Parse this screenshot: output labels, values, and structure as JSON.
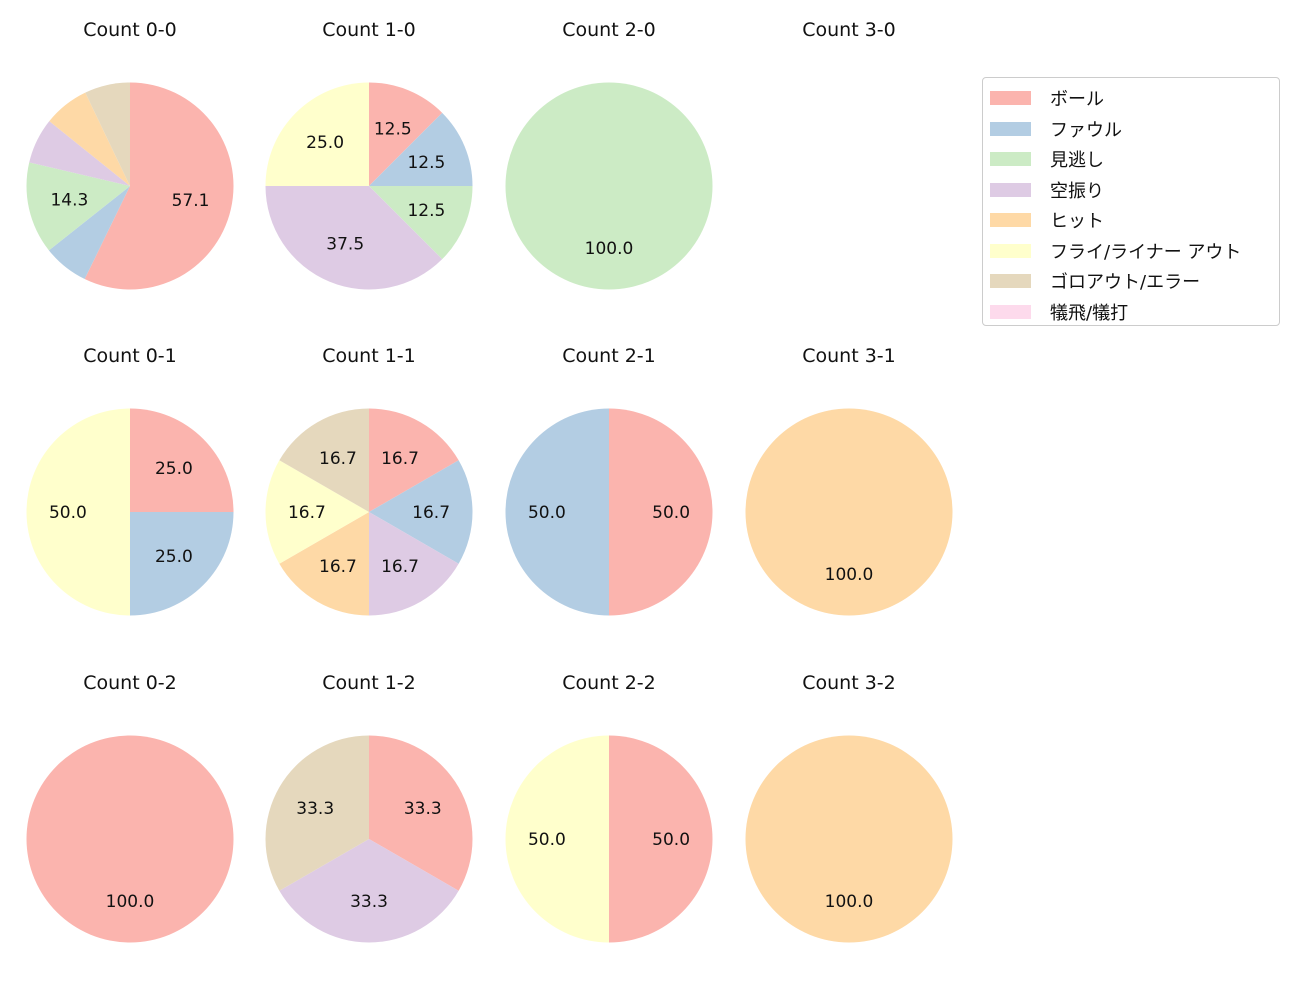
{
  "chart_data": {
    "type": "pie",
    "categories": [
      "ボール",
      "ファウル",
      "見逃し",
      "空振り",
      "ヒット",
      "フライ/ライナー アウト",
      "ゴロアウト/エラー",
      "犠飛/犠打"
    ],
    "colors": [
      "#fbb4ae",
      "#b3cde3",
      "#ccebc5",
      "#decbe4",
      "#fed9a6",
      "#ffffcc",
      "#e5d8bd",
      "#fddaec"
    ],
    "legend_position": "right",
    "charts": [
      {
        "title": "Count 0-0",
        "values": [
          57.1,
          7.1,
          14.3,
          7.1,
          7.1,
          0,
          7.1,
          0
        ],
        "labels": [
          "57.1",
          "",
          "14.3",
          "",
          "",
          "",
          "",
          ""
        ]
      },
      {
        "title": "Count 1-0",
        "values": [
          12.5,
          12.5,
          12.5,
          37.5,
          0,
          25.0,
          0,
          0
        ],
        "labels": [
          "12.5",
          "12.5",
          "12.5",
          "37.5",
          "",
          "25.0",
          "",
          ""
        ]
      },
      {
        "title": "Count 2-0",
        "values": [
          0,
          0,
          100,
          0,
          0,
          0,
          0,
          0
        ],
        "labels": [
          "",
          "",
          "100.0",
          "",
          "",
          "",
          "",
          ""
        ]
      },
      {
        "title": "Count 3-0",
        "values": [
          0,
          0,
          0,
          0,
          0,
          0,
          0,
          0
        ],
        "labels": [
          "",
          "",
          "",
          "",
          "",
          "",
          "",
          ""
        ]
      },
      {
        "title": "Count 0-1",
        "values": [
          25.0,
          25.0,
          0,
          0,
          0,
          50.0,
          0,
          0
        ],
        "labels": [
          "25.0",
          "25.0",
          "",
          "",
          "",
          "50.0",
          "",
          ""
        ]
      },
      {
        "title": "Count 1-1",
        "values": [
          16.7,
          16.7,
          0,
          16.7,
          16.7,
          16.7,
          16.7,
          0
        ],
        "labels": [
          "16.7",
          "16.7",
          "",
          "16.7",
          "16.7",
          "16.7",
          "16.7",
          ""
        ]
      },
      {
        "title": "Count 2-1",
        "values": [
          50.0,
          50.0,
          0,
          0,
          0,
          0,
          0,
          0
        ],
        "labels": [
          "50.0",
          "50.0",
          "",
          "",
          "",
          "",
          "",
          ""
        ]
      },
      {
        "title": "Count 3-1",
        "values": [
          0,
          0,
          0,
          0,
          100,
          0,
          0,
          0
        ],
        "labels": [
          "",
          "",
          "",
          "",
          "100.0",
          "",
          "",
          ""
        ]
      },
      {
        "title": "Count 0-2",
        "values": [
          100,
          0,
          0,
          0,
          0,
          0,
          0,
          0
        ],
        "labels": [
          "100.0",
          "",
          "",
          "",
          "",
          "",
          "",
          ""
        ]
      },
      {
        "title": "Count 1-2",
        "values": [
          33.3,
          0,
          0,
          33.3,
          0,
          0,
          33.3,
          0
        ],
        "labels": [
          "33.3",
          "",
          "",
          "33.3",
          "",
          "",
          "33.3",
          ""
        ]
      },
      {
        "title": "Count 2-2",
        "values": [
          50.0,
          0,
          0,
          0,
          0,
          50.0,
          0,
          0
        ],
        "labels": [
          "50.0",
          "",
          "",
          "",
          "",
          "50.0",
          "",
          ""
        ]
      },
      {
        "title": "Count 3-2",
        "values": [
          0,
          0,
          0,
          0,
          100,
          0,
          0,
          0
        ],
        "labels": [
          "",
          "",
          "",
          "",
          "100.0",
          "",
          "",
          ""
        ]
      }
    ]
  }
}
